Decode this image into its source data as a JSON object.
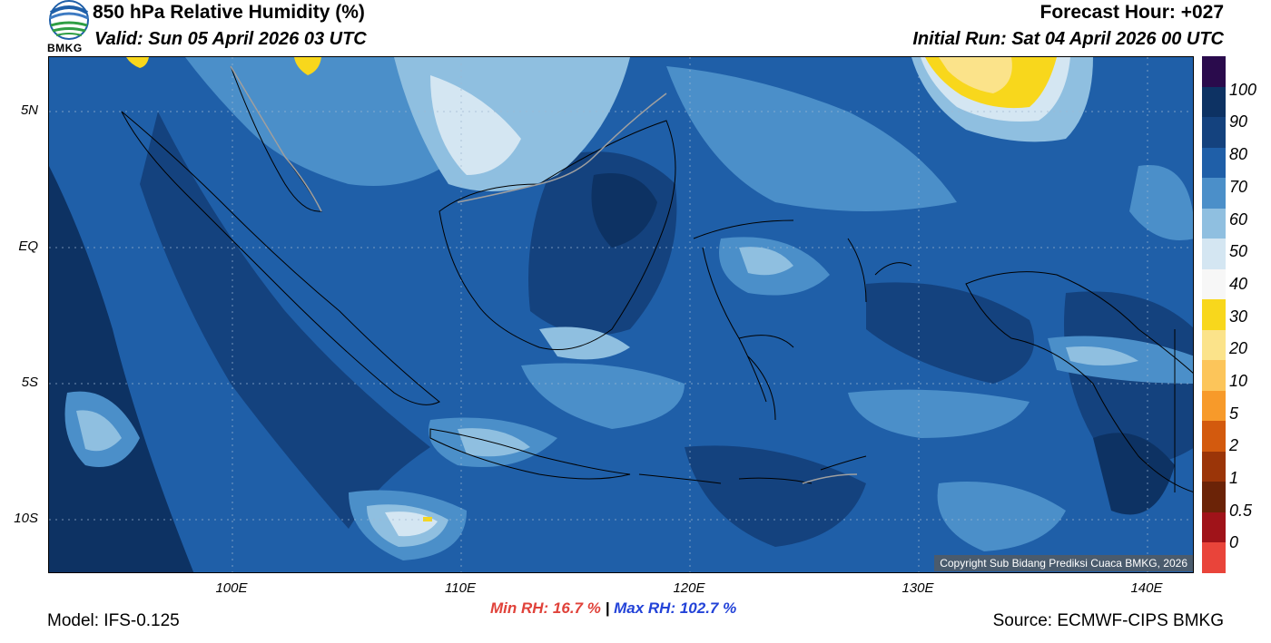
{
  "header": {
    "title": "850 hPa Relative Humidity (%)",
    "valid": "Valid: Sun 05 April 2026 03 UTC",
    "forecast_hour": "Forecast Hour: +027",
    "initial_run": "Initial Run: Sat 04 April 2026 00 UTC"
  },
  "logo": {
    "text": "BMKG",
    "icon": "bmkg-logo-icon"
  },
  "map": {
    "lat_labels": [
      "5N",
      "EQ",
      "5S",
      "10S"
    ],
    "lon_labels": [
      "100E",
      "110E",
      "120E",
      "130E",
      "140E"
    ],
    "lat_range": [
      -12,
      7
    ],
    "lon_range": [
      92,
      142
    ],
    "grid": true,
    "colors": {
      "humid_dark": "#0d3263",
      "humid": "#1f5fa8",
      "moderate": "#4b8fc9",
      "light": "#8fbfe0",
      "dry": "#d4e6f2",
      "very_dry": "#fbe06a",
      "yellow": "#f8d71c"
    }
  },
  "colorbar": {
    "labels": [
      "100",
      "90",
      "80",
      "70",
      "60",
      "50",
      "40",
      "30",
      "20",
      "10",
      "5",
      "2",
      "1",
      "0.5",
      "0"
    ],
    "colors": [
      "#2a0b4c",
      "#0d3263",
      "#14427e",
      "#1f5fa8",
      "#4b8fc9",
      "#8fbfe0",
      "#d4e6f2",
      "#f7f7f7",
      "#f8d71c",
      "#fbe38a",
      "#fcc55a",
      "#f79a2a",
      "#d35a0e",
      "#9b3508",
      "#6b2307",
      "#a01319",
      "#e9443a"
    ]
  },
  "footer": {
    "model": "Model: IFS-0.125",
    "min_rh": "Min RH:  16.7 %",
    "separator": "|",
    "max_rh": "Max RH: 102.7 %",
    "source": "Source: ECMWF-CIPS BMKG",
    "copyright": "Copyright Sub Bidang Prediksi Cuaca BMKG, 2026"
  }
}
